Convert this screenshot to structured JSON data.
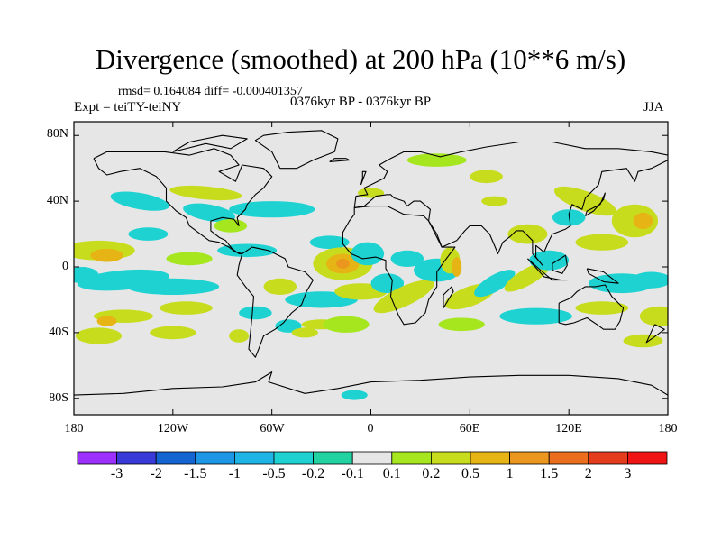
{
  "header": {
    "title": "Divergence (smoothed) at 200 hPa (10**6 m/s)",
    "stats": "rmsd= 0.164084 diff= -0.000401357",
    "expt": "Expt = teiTY-teiNY",
    "period": "0376kyr BP - 0376kyr BP",
    "season": "JJA"
  },
  "axes": {
    "y_ticks": [
      "80N",
      "40N",
      "0",
      "40S",
      "80S"
    ],
    "x_ticks": [
      "180",
      "120W",
      "60W",
      "0",
      "60E",
      "120E",
      "180"
    ]
  },
  "colorbar": {
    "labels": [
      "-3",
      "-2",
      "-1.5",
      "-1",
      "-0.5",
      "-0.2",
      "-0.1",
      "0.1",
      "0.2",
      "0.5",
      "1",
      "1.5",
      "2",
      "3"
    ],
    "colors": [
      "#9b30ff",
      "#3a3ad8",
      "#1464d2",
      "#1e96e6",
      "#1eb4e6",
      "#1ed2d2",
      "#22d2a0",
      "#e6e6e6",
      "#a5e61e",
      "#c8dc1e",
      "#e6b414",
      "#eb961e",
      "#eb6e1e",
      "#e63c1e",
      "#f01414"
    ]
  },
  "map_colors": {
    "background": "#e6e6e6",
    "coast": "#000000"
  }
}
